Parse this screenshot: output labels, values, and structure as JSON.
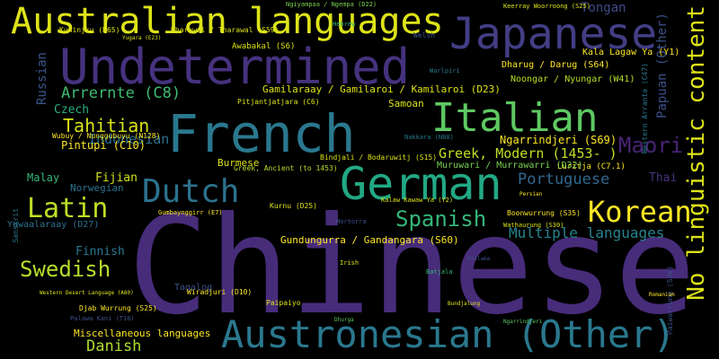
{
  "word_cloud": {
    "background": "#000000",
    "palette": [
      "#440154",
      "#3b528b",
      "#21918c",
      "#5ec962",
      "#fde725"
    ],
    "words": [
      "Chinese",
      "Undetermined",
      "French",
      "Australian languages",
      "Japanese",
      "German",
      "Italian",
      "Austronesian (Other)",
      "No linguistic content",
      "Dutch",
      "Korean",
      "Latin",
      "Spanish",
      "Swedish",
      "Maori",
      "Arrernte (C8)",
      "Tahitian",
      "Indonesian",
      "Danish",
      "Portuguese",
      "Greek, Modern (1453- )",
      "Papuan (Other)",
      "Russian",
      "Tongan",
      "Multiple languages",
      "Gamilaraay / Gamilaroi / Kamilaroi (D23)",
      "Ngarrindjeri (S69)",
      "Finnish",
      "Fijian",
      "Malay",
      "Norwegian",
      "Thai",
      "Pintupi (C10)",
      "Czech",
      "Tagalog",
      "Miscellaneous languages",
      "Burmese",
      "Samoan",
      "Luritja (C7.1)",
      "Muruwari / Murrawarri (D32)",
      "Gundungurra / Gandangara (S60)",
      "Dharug / Darug (S64)",
      "Noongar / Nyungar (W41)",
      "Kala Lagaw Ya (Y1)",
      "Yuwaalaraay (D27)",
      "Wiradjuri (D10)",
      "Wubuy / Nunggubuyu (N128)",
      "Greek, Ancient (to 1453)",
      "Bindjali / Bodaruwitj (S15)",
      "Kurnu (D25)",
      "Awabakal (S6)",
      "Pitjantjatjara (C6)",
      "Gumbaynggirr (E7)",
      "Boonwurrung (S35)",
      "Paiwarrung (S36)",
      "Djab Wurrung (S25)",
      "Ngiyampaa / Ngempa (D22)",
      "Keerray Woorroong (S25)",
      "Welsh",
      "Nakkara (N80)",
      "Sanskrit",
      "Mortorra",
      "Paipaiyo",
      "Kalaw Kawaw Ya (Y2)",
      "Batjala",
      "Yugara (E23)",
      "Ngarrindjeri",
      "Dhurga",
      "Bundjalung",
      "Dharawal / Tharawal (S59)",
      "Kuninjku (N65)",
      "Palawa Kani (T16)",
      "Western Desert Language (A80)",
      "Wathaurung (S30)",
      "Western Arranta (C47)",
      "Warlpiri",
      "Hebrew",
      "Irish",
      "Persian",
      "Romanian",
      "Bislama"
    ]
  }
}
